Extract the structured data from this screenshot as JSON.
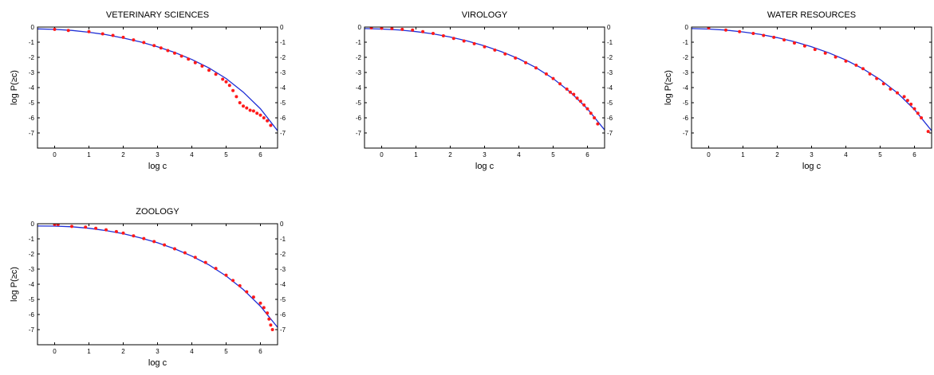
{
  "colors": {
    "fit_line": "#1f2fd6",
    "data_points": "#ff1a1a",
    "axes": "#000000",
    "background": "#ffffff"
  },
  "chart_data": [
    {
      "type": "scatter",
      "title": "VETERINARY SCIENCES",
      "xlabel": "log c",
      "ylabel": "log P(≥c)",
      "xlim": [
        -0.5,
        6.5
      ],
      "ylim": [
        -8,
        0
      ],
      "xticks": [
        "0",
        "1",
        "2",
        "3",
        "4",
        "5",
        "6"
      ],
      "yticks": [
        "0",
        "-1",
        "-2",
        "-3",
        "-4",
        "-5",
        "-6",
        "-7"
      ],
      "grid": false,
      "series": [
        {
          "kind": "line",
          "x": [
            -0.5,
            0,
            0.5,
            1,
            1.5,
            2,
            2.5,
            3,
            3.5,
            4,
            4.5,
            5,
            5.5,
            6,
            6.5
          ],
          "y": [
            -0.12,
            -0.15,
            -0.22,
            -0.34,
            -0.5,
            -0.72,
            -0.98,
            -1.3,
            -1.68,
            -2.14,
            -2.7,
            -3.4,
            -4.3,
            -5.4,
            -6.85
          ]
        },
        {
          "kind": "points",
          "x": [
            0,
            0.4,
            1.0,
            1.4,
            1.7,
            2.0,
            2.3,
            2.6,
            2.9,
            3.1,
            3.3,
            3.5,
            3.7,
            3.9,
            4.1,
            4.3,
            4.5,
            4.7,
            4.9,
            5.0,
            5.1,
            5.2,
            5.3,
            5.4,
            5.5,
            5.6,
            5.7,
            5.8,
            5.9,
            6.0,
            6.1,
            6.2,
            6.3
          ],
          "y": [
            -0.15,
            -0.22,
            -0.3,
            -0.45,
            -0.55,
            -0.68,
            -0.85,
            -1.02,
            -1.22,
            -1.38,
            -1.55,
            -1.72,
            -1.92,
            -2.12,
            -2.35,
            -2.58,
            -2.85,
            -3.12,
            -3.45,
            -3.62,
            -3.85,
            -4.2,
            -4.6,
            -5.0,
            -5.22,
            -5.35,
            -5.5,
            -5.55,
            -5.7,
            -5.82,
            -6.0,
            -6.2,
            -6.5
          ]
        }
      ]
    },
    {
      "type": "scatter",
      "title": "VIROLOGY",
      "xlabel": "log c",
      "ylabel": "",
      "xlim": [
        -0.5,
        6.5
      ],
      "ylim": [
        -8,
        0
      ],
      "xticks": [
        "0",
        "1",
        "2",
        "3",
        "4",
        "5",
        "6"
      ],
      "yticks": [
        "0",
        "-1",
        "-2",
        "-3",
        "-4",
        "-5",
        "-6",
        "-7"
      ],
      "grid": false,
      "series": [
        {
          "kind": "line",
          "x": [
            -0.5,
            0,
            0.5,
            1,
            1.5,
            2,
            2.5,
            3,
            3.5,
            4,
            4.5,
            5,
            5.5,
            6,
            6.5
          ],
          "y": [
            -0.1,
            -0.13,
            -0.19,
            -0.3,
            -0.45,
            -0.66,
            -0.92,
            -1.24,
            -1.63,
            -2.1,
            -2.68,
            -3.4,
            -4.3,
            -5.4,
            -6.8
          ]
        },
        {
          "kind": "points",
          "x": [
            -0.3,
            0,
            0.3,
            0.6,
            0.9,
            1.2,
            1.5,
            1.8,
            2.1,
            2.4,
            2.7,
            3.0,
            3.3,
            3.6,
            3.9,
            4.2,
            4.5,
            4.8,
            5.0,
            5.2,
            5.4,
            5.5,
            5.6,
            5.7,
            5.8,
            5.9,
            6.0,
            6.1,
            6.2,
            6.3
          ],
          "y": [
            -0.05,
            -0.08,
            -0.1,
            -0.15,
            -0.2,
            -0.3,
            -0.42,
            -0.58,
            -0.75,
            -0.92,
            -1.1,
            -1.3,
            -1.52,
            -1.78,
            -2.05,
            -2.36,
            -2.7,
            -3.1,
            -3.4,
            -3.75,
            -4.1,
            -4.3,
            -4.45,
            -4.7,
            -4.9,
            -5.15,
            -5.4,
            -5.7,
            -6.0,
            -6.4
          ]
        }
      ]
    },
    {
      "type": "scatter",
      "title": "WATER RESOURCES",
      "xlabel": "log c",
      "ylabel": "log P(≥c)",
      "xlim": [
        -0.5,
        6.5
      ],
      "ylim": [
        -8,
        0
      ],
      "xticks": [
        "0",
        "1",
        "2",
        "3",
        "4",
        "5",
        "6"
      ],
      "yticks": [
        "0",
        "-1",
        "-2",
        "-3",
        "-4",
        "-5",
        "-6",
        "-7"
      ],
      "grid": false,
      "series": [
        {
          "kind": "line",
          "x": [
            -0.5,
            0,
            0.5,
            1,
            1.5,
            2,
            2.5,
            3,
            3.5,
            4,
            4.5,
            5,
            5.5,
            6,
            6.5
          ],
          "y": [
            -0.1,
            -0.13,
            -0.2,
            -0.32,
            -0.48,
            -0.7,
            -0.97,
            -1.3,
            -1.7,
            -2.18,
            -2.76,
            -3.47,
            -4.35,
            -5.45,
            -6.85
          ]
        },
        {
          "kind": "points",
          "x": [
            0,
            0.5,
            0.9,
            1.3,
            1.6,
            1.9,
            2.2,
            2.5,
            2.8,
            3.1,
            3.4,
            3.7,
            4.0,
            4.3,
            4.5,
            4.7,
            4.9,
            5.1,
            5.3,
            5.5,
            5.7,
            5.8,
            5.9,
            6.0,
            6.1,
            6.2,
            6.4
          ],
          "y": [
            -0.05,
            -0.2,
            -0.3,
            -0.42,
            -0.55,
            -0.68,
            -0.85,
            -1.05,
            -1.25,
            -1.48,
            -1.72,
            -1.98,
            -2.25,
            -2.52,
            -2.75,
            -3.1,
            -3.4,
            -3.75,
            -4.1,
            -4.35,
            -4.6,
            -4.85,
            -5.1,
            -5.4,
            -5.7,
            -6.0,
            -6.9
          ]
        }
      ]
    },
    {
      "type": "scatter",
      "title": "ZOOLOGY",
      "xlabel": "log c",
      "ylabel": "log P(≥c)",
      "xlim": [
        -0.5,
        6.5
      ],
      "ylim": [
        -8,
        0
      ],
      "xticks": [
        "0",
        "1",
        "2",
        "3",
        "4",
        "5",
        "6"
      ],
      "yticks": [
        "0",
        "-1",
        "-2",
        "-3",
        "-4",
        "-5",
        "-6",
        "-7"
      ],
      "grid": false,
      "series": [
        {
          "kind": "line",
          "x": [
            -0.5,
            0,
            0.5,
            1,
            1.5,
            2,
            2.5,
            3,
            3.5,
            4,
            4.5,
            5,
            5.5,
            6,
            6.5
          ],
          "y": [
            -0.15,
            -0.16,
            -0.2,
            -0.3,
            -0.45,
            -0.66,
            -0.93,
            -1.26,
            -1.66,
            -2.14,
            -2.72,
            -3.45,
            -4.35,
            -5.45,
            -6.85
          ]
        },
        {
          "kind": "points",
          "x": [
            0.0,
            0.1,
            0.5,
            0.9,
            1.2,
            1.5,
            1.8,
            2.0,
            2.3,
            2.6,
            2.9,
            3.2,
            3.5,
            3.8,
            4.1,
            4.4,
            4.7,
            5.0,
            5.2,
            5.4,
            5.6,
            5.8,
            6.0,
            6.1,
            6.2,
            6.25,
            6.3,
            6.35
          ],
          "y": [
            -0.05,
            -0.05,
            -0.18,
            -0.22,
            -0.3,
            -0.4,
            -0.52,
            -0.62,
            -0.8,
            -0.98,
            -1.18,
            -1.4,
            -1.66,
            -1.92,
            -2.22,
            -2.56,
            -2.95,
            -3.4,
            -3.75,
            -4.1,
            -4.5,
            -4.85,
            -5.25,
            -5.55,
            -5.9,
            -6.3,
            -6.7,
            -7.0
          ]
        }
      ]
    }
  ]
}
